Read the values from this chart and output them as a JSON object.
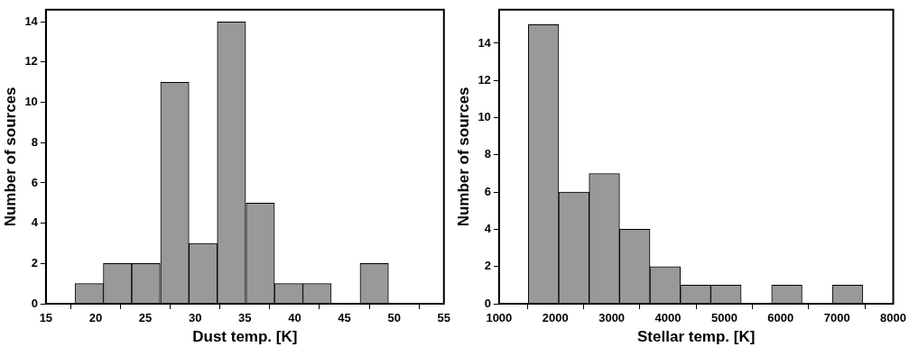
{
  "chart_data": [
    {
      "type": "histogram",
      "xlabel": "Dust temp. [K]",
      "ylabel": "Number of sources",
      "color": "#999999",
      "bins": [
        17.9,
        20.8,
        23.6,
        26.5,
        29.4,
        32.2,
        35.1,
        38.0,
        40.8,
        43.7,
        46.6,
        49.4
      ],
      "values": [
        1,
        2,
        2,
        11,
        3,
        14,
        5,
        1,
        1,
        0,
        2
      ],
      "xlim": [
        15,
        55
      ],
      "xticks": [
        15,
        20,
        25,
        30,
        35,
        40,
        45,
        50,
        55
      ],
      "ylim": [
        0,
        14.6
      ],
      "yticks": [
        0,
        2,
        4,
        6,
        8,
        10,
        12,
        14
      ],
      "grid": false,
      "legend": false
    },
    {
      "type": "histogram",
      "xlabel": "Stellar temp. [K]",
      "ylabel": "Number of sources",
      "color": "#999999",
      "bins": [
        1520,
        2060,
        2600,
        3140,
        3680,
        4220,
        4760,
        5300,
        5840,
        6380,
        6920,
        7460
      ],
      "values": [
        15,
        6,
        7,
        4,
        2,
        1,
        1,
        0,
        1,
        0,
        1
      ],
      "xlim": [
        1000,
        8000
      ],
      "xticks": [
        1000,
        2000,
        3000,
        4000,
        5000,
        6000,
        7000,
        8000
      ],
      "ylim": [
        0,
        15.8
      ],
      "yticks": [
        0,
        2,
        4,
        6,
        8,
        10,
        12,
        14
      ],
      "grid": false,
      "legend": false
    }
  ]
}
